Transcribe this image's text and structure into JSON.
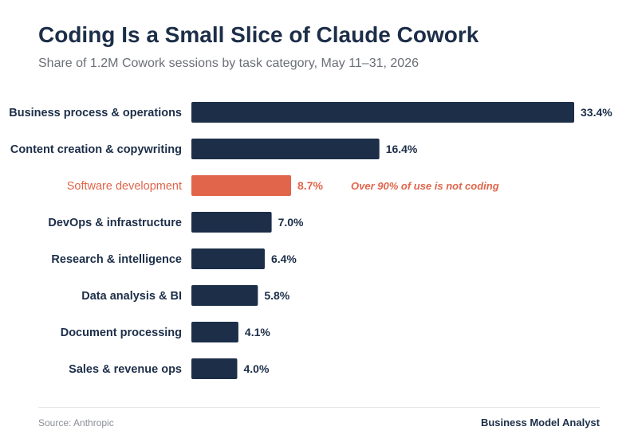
{
  "chart_data": {
    "type": "bar",
    "orientation": "horizontal",
    "title": "Coding Is a Small Slice of Claude Cowork",
    "subtitle": "Share of 1.2M Cowork sessions by task category, May 11–31, 2026",
    "categories": [
      "Business process & operations",
      "Content creation & copywriting",
      "Software development",
      "DevOps & infrastructure",
      "Research & intelligence",
      "Data analysis & BI",
      "Document processing",
      "Sales & revenue ops"
    ],
    "values": [
      33.4,
      16.4,
      8.7,
      7.0,
      6.4,
      5.8,
      4.1,
      4.0
    ],
    "value_labels": [
      "33.4%",
      "16.4%",
      "8.7%",
      "7.0%",
      "6.4%",
      "5.8%",
      "4.1%",
      "4.0%"
    ],
    "highlight_index": 2,
    "annotation": {
      "category": "Software development",
      "text": "Over 90% of use is not coding"
    },
    "colors": {
      "default": "#1c2e48",
      "highlight": "#e0654b"
    },
    "xlim": [
      0,
      33.4
    ],
    "grid": false,
    "legend": "none"
  },
  "footer": {
    "source": "Source: Anthropic",
    "brand": "Business Model Analyst"
  }
}
